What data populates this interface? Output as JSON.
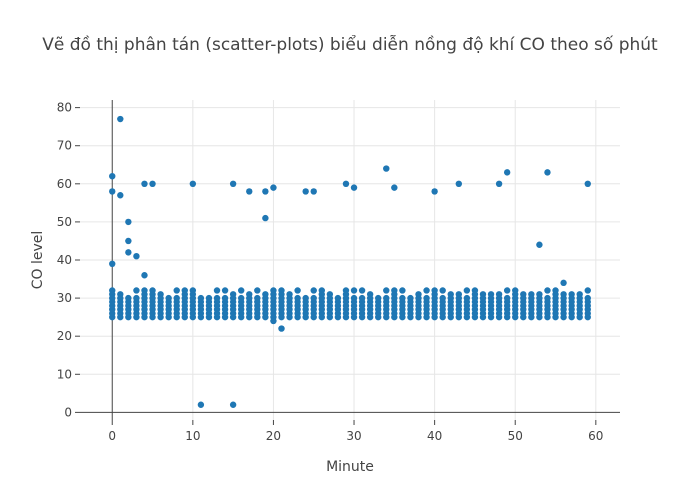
{
  "chart_data": {
    "type": "scatter",
    "title": "Vẽ đồ thị phân tán (scatter-plots) biểu diễn nồng độ khí CO theo số phút",
    "xlabel": "Minute",
    "ylabel": "CO level",
    "xlim": [
      -4,
      63
    ],
    "ylim": [
      -2,
      82
    ],
    "xticks": [
      0,
      10,
      20,
      30,
      40,
      50,
      60
    ],
    "yticks": [
      0,
      10,
      20,
      30,
      40,
      50,
      60,
      70,
      80
    ],
    "grid": true,
    "marker_color": "#1f77b4",
    "band": {
      "x_from": 0,
      "x_to": 59,
      "y_levels": [
        25,
        26,
        27,
        28,
        29
      ]
    },
    "points": [
      [
        0,
        62
      ],
      [
        0,
        58
      ],
      [
        0,
        39
      ],
      [
        0,
        32
      ],
      [
        0,
        31
      ],
      [
        0,
        30
      ],
      [
        1,
        77
      ],
      [
        1,
        57
      ],
      [
        1,
        31
      ],
      [
        1,
        30
      ],
      [
        2,
        50
      ],
      [
        2,
        45
      ],
      [
        2,
        42
      ],
      [
        2,
        30
      ],
      [
        3,
        41
      ],
      [
        3,
        32
      ],
      [
        3,
        30
      ],
      [
        4,
        60
      ],
      [
        4,
        36
      ],
      [
        4,
        32
      ],
      [
        4,
        31
      ],
      [
        4,
        30
      ],
      [
        5,
        60
      ],
      [
        5,
        32
      ],
      [
        5,
        31
      ],
      [
        5,
        30
      ],
      [
        6,
        31
      ],
      [
        6,
        30
      ],
      [
        7,
        30
      ],
      [
        8,
        32
      ],
      [
        8,
        30
      ],
      [
        9,
        32
      ],
      [
        9,
        31
      ],
      [
        9,
        30
      ],
      [
        10,
        60
      ],
      [
        10,
        32
      ],
      [
        10,
        31
      ],
      [
        10,
        30
      ],
      [
        11,
        2
      ],
      [
        11,
        30
      ],
      [
        12,
        30
      ],
      [
        13,
        32
      ],
      [
        13,
        30
      ],
      [
        14,
        32
      ],
      [
        14,
        30
      ],
      [
        15,
        60
      ],
      [
        15,
        2
      ],
      [
        15,
        31
      ],
      [
        15,
        30
      ],
      [
        16,
        32
      ],
      [
        16,
        30
      ],
      [
        17,
        58
      ],
      [
        17,
        31
      ],
      [
        17,
        30
      ],
      [
        18,
        32
      ],
      [
        18,
        30
      ],
      [
        19,
        58
      ],
      [
        19,
        51
      ],
      [
        19,
        31
      ],
      [
        19,
        30
      ],
      [
        20,
        59
      ],
      [
        20,
        32
      ],
      [
        20,
        31
      ],
      [
        20,
        30
      ],
      [
        20,
        24
      ],
      [
        21,
        32
      ],
      [
        21,
        31
      ],
      [
        21,
        30
      ],
      [
        21,
        22
      ],
      [
        22,
        31
      ],
      [
        22,
        30
      ],
      [
        23,
        32
      ],
      [
        23,
        30
      ],
      [
        24,
        58
      ],
      [
        24,
        30
      ],
      [
        25,
        58
      ],
      [
        25,
        32
      ],
      [
        25,
        30
      ],
      [
        26,
        32
      ],
      [
        26,
        31
      ],
      [
        26,
        30
      ],
      [
        27,
        31
      ],
      [
        27,
        30
      ],
      [
        28,
        30
      ],
      [
        29,
        60
      ],
      [
        29,
        32
      ],
      [
        29,
        31
      ],
      [
        29,
        30
      ],
      [
        30,
        59
      ],
      [
        30,
        32
      ],
      [
        30,
        30
      ],
      [
        31,
        32
      ],
      [
        31,
        30
      ],
      [
        32,
        31
      ],
      [
        32,
        30
      ],
      [
        33,
        30
      ],
      [
        34,
        64
      ],
      [
        34,
        32
      ],
      [
        34,
        30
      ],
      [
        35,
        59
      ],
      [
        35,
        32
      ],
      [
        35,
        31
      ],
      [
        35,
        30
      ],
      [
        36,
        32
      ],
      [
        36,
        30
      ],
      [
        37,
        30
      ],
      [
        38,
        31
      ],
      [
        38,
        30
      ],
      [
        39,
        32
      ],
      [
        39,
        30
      ],
      [
        40,
        58
      ],
      [
        40,
        32
      ],
      [
        40,
        31
      ],
      [
        40,
        30
      ],
      [
        41,
        32
      ],
      [
        41,
        30
      ],
      [
        42,
        31
      ],
      [
        42,
        30
      ],
      [
        43,
        60
      ],
      [
        43,
        31
      ],
      [
        43,
        30
      ],
      [
        44,
        32
      ],
      [
        44,
        30
      ],
      [
        45,
        32
      ],
      [
        45,
        31
      ],
      [
        45,
        30
      ],
      [
        46,
        31
      ],
      [
        46,
        30
      ],
      [
        47,
        31
      ],
      [
        47,
        30
      ],
      [
        48,
        60
      ],
      [
        48,
        31
      ],
      [
        48,
        30
      ],
      [
        49,
        63
      ],
      [
        49,
        32
      ],
      [
        49,
        30
      ],
      [
        50,
        32
      ],
      [
        50,
        31
      ],
      [
        50,
        30
      ],
      [
        51,
        31
      ],
      [
        51,
        30
      ],
      [
        52,
        31
      ],
      [
        52,
        30
      ],
      [
        53,
        44
      ],
      [
        53,
        31
      ],
      [
        53,
        30
      ],
      [
        54,
        63
      ],
      [
        54,
        32
      ],
      [
        54,
        30
      ],
      [
        55,
        32
      ],
      [
        55,
        31
      ],
      [
        55,
        30
      ],
      [
        56,
        34
      ],
      [
        56,
        31
      ],
      [
        56,
        30
      ],
      [
        57,
        31
      ],
      [
        57,
        30
      ],
      [
        58,
        31
      ],
      [
        58,
        30
      ],
      [
        59,
        60
      ],
      [
        59,
        32
      ],
      [
        59,
        30
      ]
    ]
  }
}
